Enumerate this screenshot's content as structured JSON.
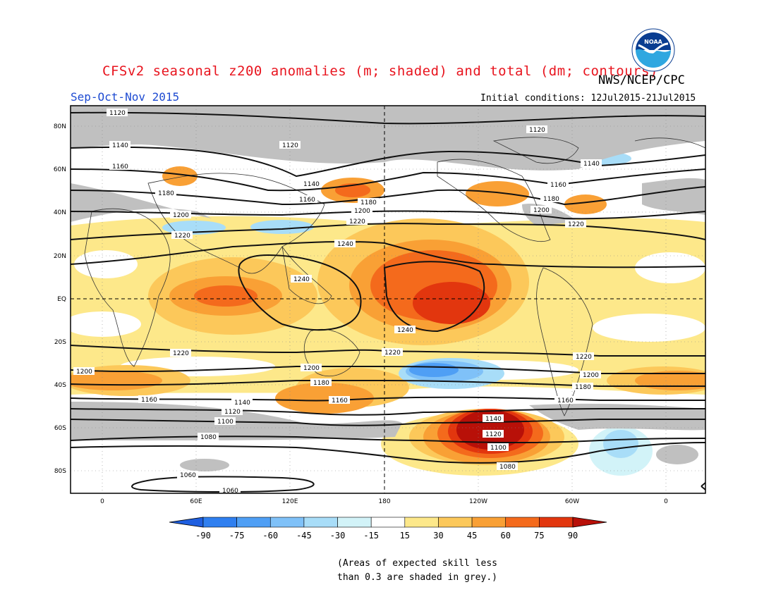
{
  "header": {
    "title": "CFSv2 seasonal z200 anomalies (m; shaded) and total (dm; contours)",
    "agency": "NWS/NCEP/CPC",
    "season": "Sep-Oct-Nov 2015",
    "initial_conditions": "Initial conditions: 12Jul2015-21Jul2015",
    "logo_text": "NOAA"
  },
  "axes": {
    "lat_labels": [
      "80N",
      "60N",
      "40N",
      "20N",
      "EQ",
      "20S",
      "40S",
      "60S",
      "80S"
    ],
    "lon_labels": [
      "0",
      "60E",
      "120E",
      "180",
      "120W",
      "60W",
      "0"
    ]
  },
  "colorbar": {
    "ticks": [
      "-90",
      "-75",
      "-60",
      "-45",
      "-30",
      "-15",
      "15",
      "30",
      "45",
      "60",
      "75",
      "90"
    ],
    "colors": [
      "#1f5fe0",
      "#2f7ff0",
      "#4f9ff5",
      "#7fc1f8",
      "#a8ddf8",
      "#d2f3f8",
      "#ffffff",
      "#fde88a",
      "#fcc85a",
      "#f9a035",
      "#f46a1c",
      "#e2360e",
      "#b81008"
    ]
  },
  "contour_labels": [
    "1120",
    "1140",
    "1160",
    "1180",
    "1200",
    "1220",
    "1240",
    "1100",
    "1080",
    "1060"
  ],
  "footnote": {
    "line1": "(Areas of expected skill less",
    "line2": "than 0.3 are shaded in grey.)"
  },
  "colors": {
    "title": "#e8141e",
    "season": "#1e4bd2",
    "skill_grey": "#c0c0c0"
  }
}
